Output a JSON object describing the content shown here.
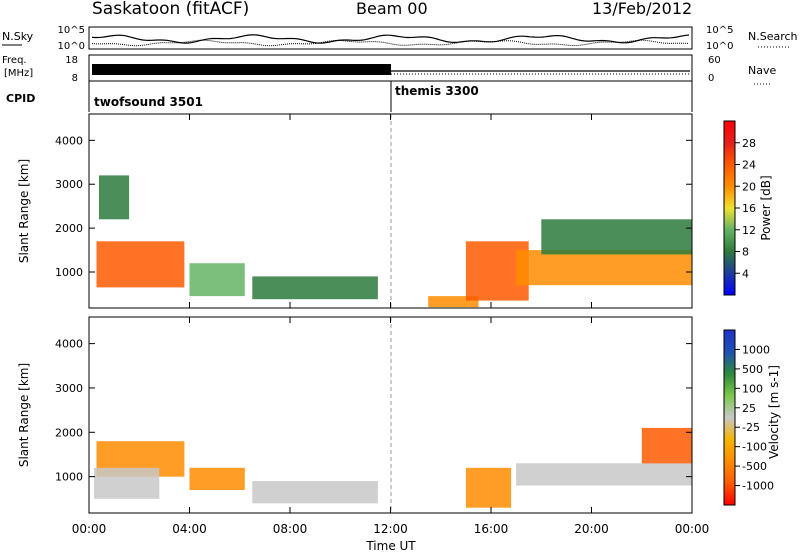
{
  "header": {
    "title": "Saskatoon (fitACF)",
    "beam": "Beam 00",
    "date": "13/Feb/2012"
  },
  "noise_panel": {
    "left_label": "N.Sky",
    "right_label": "N.Search",
    "left_ticks": [
      "10^5",
      "10^0"
    ],
    "right_ticks": [
      "10^5",
      "10^0"
    ]
  },
  "freq_panel": {
    "left_label_top": "Freq.",
    "left_label_unit": "[MHz]",
    "right_label": "Nave",
    "left_ticks": [
      "18",
      "8"
    ],
    "right_ticks": [
      "60",
      "0"
    ]
  },
  "cpid_panel": {
    "label": "CPID",
    "programs": [
      {
        "name": "twofsound 3501",
        "start_hour": 0
      },
      {
        "name": "themis 3300",
        "start_hour": 12
      }
    ]
  },
  "chart_data": [
    {
      "type": "heatmap",
      "title": "",
      "parameter": "Power",
      "ylabel": "Slant Range [km]",
      "xlabel": "Time UT",
      "xlim": [
        0,
        24
      ],
      "ylim": [
        180,
        4600
      ],
      "yticks": [
        "1000",
        "2000",
        "3000",
        "4000"
      ],
      "colorbar": {
        "label": "Power [dB]",
        "ticks": [
          "28",
          "24",
          "20",
          "16",
          "12",
          "8",
          "4"
        ],
        "colors": [
          "#0000ff",
          "#1e3c9f",
          "#2d7a3c",
          "#64b464",
          "#f0e130",
          "#ff8c00",
          "#ff5a00",
          "#e61e1e",
          "#ff0000"
        ]
      },
      "regions": [
        {
          "t0": 0.3,
          "t1": 3.8,
          "r0": 650,
          "r1": 1700,
          "value": 22
        },
        {
          "t0": 0.4,
          "t1": 1.6,
          "r0": 2200,
          "r1": 3200,
          "value": 10
        },
        {
          "t0": 4.0,
          "t1": 6.2,
          "r0": 450,
          "r1": 1200,
          "value": 12
        },
        {
          "t0": 6.5,
          "t1": 11.5,
          "r0": 380,
          "r1": 900,
          "value": 9
        },
        {
          "t0": 13.5,
          "t1": 15.5,
          "r0": 200,
          "r1": 450,
          "value": 21
        },
        {
          "t0": 15.0,
          "t1": 17.5,
          "r0": 350,
          "r1": 1700,
          "value": 22
        },
        {
          "t0": 17.0,
          "t1": 24.0,
          "r0": 700,
          "r1": 1500,
          "value": 21
        },
        {
          "t0": 18.0,
          "t1": 24.0,
          "r0": 1400,
          "r1": 2200,
          "value": 8
        }
      ]
    },
    {
      "type": "heatmap",
      "title": "",
      "parameter": "Velocity",
      "ylabel": "Slant Range [km]",
      "xlabel": "Time UT",
      "xlim": [
        0,
        24
      ],
      "ylim": [
        180,
        4600
      ],
      "yticks": [
        "1000",
        "2000",
        "3000",
        "4000"
      ],
      "xticks": [
        "00:00",
        "04:00",
        "08:00",
        "12:00",
        "16:00",
        "20:00",
        "00:00"
      ],
      "colorbar": {
        "label": "Velocity [m s-1]",
        "ticks": [
          "1000",
          "500",
          "100",
          "25",
          "-25",
          "-100",
          "-500",
          "-1000"
        ],
        "colors": [
          "#ff0000",
          "#ff5a00",
          "#ff8c00",
          "#f4b400",
          "#c8c8c8",
          "#7cc84b",
          "#2d8a3c",
          "#1e50b4",
          "#1e32c8"
        ]
      },
      "regions": [
        {
          "t0": 0.3,
          "t1": 3.8,
          "r0": 1000,
          "r1": 1800,
          "value": -300
        },
        {
          "t0": 0.2,
          "t1": 2.8,
          "r0": 500,
          "r1": 1200,
          "value": 0
        },
        {
          "t0": 4.0,
          "t1": 6.2,
          "r0": 700,
          "r1": 1200,
          "value": -200
        },
        {
          "t0": 6.5,
          "t1": 11.5,
          "r0": 400,
          "r1": 900,
          "value": 0
        },
        {
          "t0": 15.0,
          "t1": 16.8,
          "r0": 300,
          "r1": 1200,
          "value": -250
        },
        {
          "t0": 17.0,
          "t1": 24.0,
          "r0": 800,
          "r1": 1300,
          "value": 0
        },
        {
          "t0": 22.0,
          "t1": 24.0,
          "r0": 1300,
          "r1": 2100,
          "value": -600
        }
      ]
    }
  ]
}
